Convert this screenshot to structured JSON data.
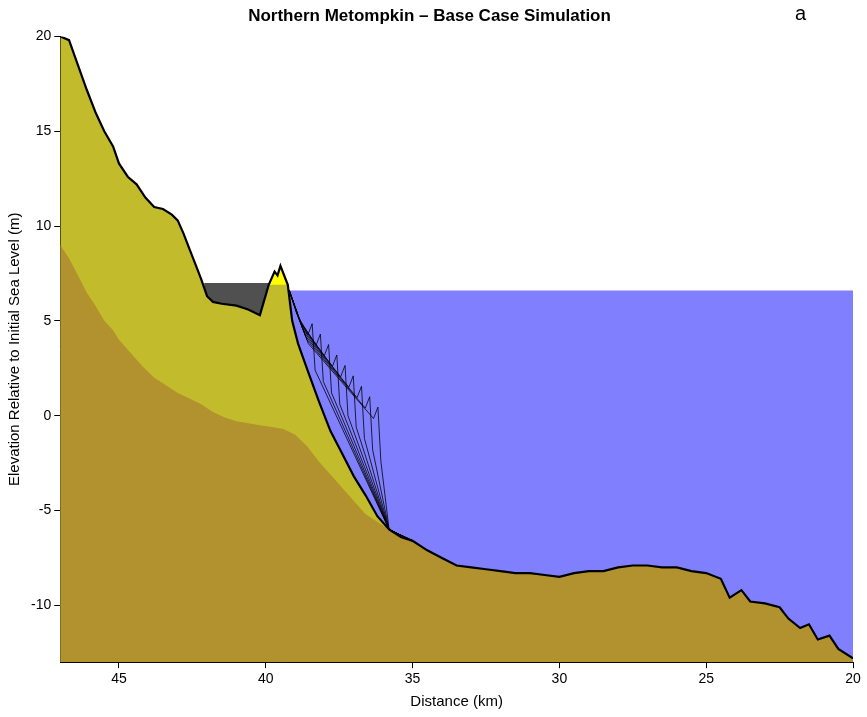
{
  "chart_data": {
    "type": "line",
    "title": "Northern Metompkin – Base Case Simulation",
    "panel_label": "a",
    "x_label": "Distance (km)",
    "y_label": "Elevation Relative to Initial Sea Level (m)",
    "xlim": [
      47,
      20
    ],
    "xticks": [
      45,
      40,
      35,
      30,
      25,
      20
    ],
    "ylim": [
      -13,
      20
    ],
    "yticks": [
      -10,
      -5,
      0,
      5,
      10,
      15,
      20
    ],
    "grid": false,
    "legend": false,
    "series": [
      {
        "type": "area",
        "color": "#8080ff",
        "x": [
          39.22,
          20.0
        ],
        "values": [
          6.6,
          6.6
        ]
      },
      {
        "type": "area",
        "color": "#505050",
        "x": [
          42.1,
          39.85
        ],
        "values": [
          7.0,
          7.0
        ]
      },
      {
        "type": "area",
        "color": "#ffff00",
        "x": [
          39.9,
          39.7,
          39.6,
          39.5,
          39.35,
          39.25
        ],
        "values": [
          6.9,
          7.6,
          7.4,
          7.9,
          7.3,
          6.9
        ]
      },
      {
        "type": "area",
        "color": "#c2bb2c",
        "x": [
          47,
          46.7,
          46.4,
          46.1,
          45.8,
          45.5,
          45.2,
          45.0,
          44.7,
          44.4,
          44.1,
          43.8,
          43.5,
          43.2,
          43.0,
          42.8,
          42.6,
          42.4,
          42.2,
          42.0,
          41.8,
          41.5,
          41.0,
          40.6,
          40.2,
          39.9,
          39.7,
          39.6,
          39.5,
          39.35,
          39.25,
          39.1,
          38.9,
          38.6,
          38.2,
          37.8,
          37.4,
          37.0,
          36.6,
          36.2,
          35.8,
          35.4,
          35.0,
          34.5,
          34.0,
          33.5,
          33.0,
          32.5,
          32.0,
          31.5,
          31.0,
          30.5,
          30.0,
          29.5,
          29.0,
          28.5,
          28.0,
          27.5,
          27.0,
          26.5,
          26.0,
          25.5,
          25.0,
          24.5,
          24.2,
          23.8,
          23.5,
          23.0,
          22.5,
          22.2,
          21.8,
          21.5,
          21.2,
          20.8,
          20.5,
          20.0
        ],
        "values": [
          20,
          19.8,
          18.5,
          17.2,
          16.0,
          15.0,
          14.2,
          13.3,
          12.6,
          12.2,
          11.5,
          11.0,
          10.9,
          10.6,
          10.3,
          9.6,
          8.8,
          8.0,
          7.2,
          6.3,
          6.0,
          5.9,
          5.8,
          5.6,
          5.3,
          6.9,
          6.9,
          6.9,
          6.9,
          6.9,
          6.9,
          5.0,
          3.8,
          2.5,
          0.8,
          -0.8,
          -2.0,
          -3.2,
          -4.2,
          -5.3,
          -6.0,
          -6.4,
          -6.6,
          -7.1,
          -7.5,
          -7.9,
          -8.0,
          -8.1,
          -8.2,
          -8.3,
          -8.3,
          -8.4,
          -8.5,
          -8.3,
          -8.2,
          -8.2,
          -8.0,
          -7.9,
          -7.9,
          -8.0,
          -8.0,
          -8.2,
          -8.3,
          -8.6,
          -9.6,
          -9.2,
          -9.8,
          -9.9,
          -10.1,
          -10.7,
          -11.2,
          -11.0,
          -11.8,
          -11.6,
          -12.3,
          -12.8
        ]
      },
      {
        "type": "area",
        "color": "#b1922f",
        "x": [
          47,
          46.7,
          46.4,
          46.1,
          45.8,
          45.5,
          45.2,
          45.0,
          44.6,
          44.2,
          43.8,
          43.4,
          43.0,
          42.6,
          42.2,
          41.8,
          41.4,
          41.0,
          40.6,
          40.2,
          39.8,
          39.4,
          39.0,
          38.6,
          38.2,
          37.8,
          37.4,
          37.0,
          36.6,
          36.2,
          35.8,
          35.4,
          35.0,
          34.5,
          34.0,
          33.5,
          33.0,
          32.5,
          32.0,
          31.5,
          31.0,
          30.5,
          30.0,
          29.5,
          29.0,
          28.5,
          28.0,
          27.5,
          27.0,
          26.5,
          26.0,
          25.5,
          25.0,
          24.5,
          24.2,
          23.8,
          23.5,
          23.0,
          22.5,
          22.2,
          21.8,
          21.5,
          21.2,
          20.8,
          20.5,
          20.0
        ],
        "values": [
          9.0,
          8.3,
          7.4,
          6.5,
          5.8,
          5.0,
          4.5,
          4.0,
          3.3,
          2.6,
          2.0,
          1.6,
          1.2,
          0.9,
          0.6,
          0.2,
          -0.1,
          -0.3,
          -0.4,
          -0.5,
          -0.6,
          -0.7,
          -1.0,
          -1.6,
          -2.4,
          -3.1,
          -3.8,
          -4.5,
          -5.2,
          -5.6,
          -6.0,
          -6.4,
          -6.6,
          -7.1,
          -7.5,
          -7.9,
          -8.0,
          -8.1,
          -8.2,
          -8.3,
          -8.3,
          -8.4,
          -8.5,
          -8.3,
          -8.2,
          -8.2,
          -8.0,
          -7.9,
          -7.9,
          -8.0,
          -8.0,
          -8.2,
          -8.3,
          -8.6,
          -9.6,
          -9.2,
          -9.8,
          -9.9,
          -10.1,
          -10.7,
          -11.2,
          -11.0,
          -11.8,
          -11.6,
          -12.3,
          -12.8
        ]
      },
      {
        "type": "line",
        "color": "#000000",
        "line_style": "thin",
        "x": [
          39.2,
          38.95,
          38.57,
          38.42,
          38.32,
          35.8,
          35.0
        ],
        "values": [
          6.6,
          5.4,
          4.25,
          4.85,
          2.4,
          -6.0,
          -6.6
        ]
      },
      {
        "type": "line",
        "color": "#000000",
        "line_style": "thin",
        "x": [
          39.2,
          38.9,
          38.29,
          38.14,
          38.04,
          35.8,
          35.0
        ],
        "values": [
          6.6,
          5.2,
          3.7,
          4.3,
          1.8,
          -6.0,
          -6.6
        ]
      },
      {
        "type": "line",
        "color": "#000000",
        "line_style": "thin",
        "x": [
          39.2,
          38.85,
          38.01,
          37.86,
          37.76,
          35.8,
          35.0
        ],
        "values": [
          6.6,
          5.0,
          3.15,
          3.75,
          1.2,
          -6.0,
          -6.6
        ]
      },
      {
        "type": "line",
        "color": "#000000",
        "line_style": "thin",
        "x": [
          39.2,
          38.8,
          37.73,
          37.58,
          37.48,
          35.8,
          35.0
        ],
        "values": [
          6.6,
          4.8,
          2.6,
          3.2,
          0.6,
          -6.0,
          -6.6
        ]
      },
      {
        "type": "line",
        "color": "#000000",
        "line_style": "thin",
        "x": [
          39.2,
          38.75,
          37.45,
          37.3,
          37.2,
          35.8,
          35.0
        ],
        "values": [
          6.6,
          4.6,
          2.05,
          2.65,
          0.0,
          -6.0,
          -6.6
        ]
      },
      {
        "type": "line",
        "color": "#000000",
        "line_style": "thin",
        "x": [
          39.2,
          38.7,
          37.17,
          37.02,
          36.92,
          35.8,
          35.0
        ],
        "values": [
          6.6,
          4.4,
          1.5,
          2.1,
          -0.6,
          -6.0,
          -6.6
        ]
      },
      {
        "type": "line",
        "color": "#000000",
        "line_style": "thin",
        "x": [
          39.2,
          38.65,
          36.89,
          36.74,
          36.64,
          35.8,
          35.0
        ],
        "values": [
          6.6,
          4.2,
          0.95,
          1.55,
          -1.2,
          -6.0,
          -6.6
        ]
      },
      {
        "type": "line",
        "color": "#000000",
        "line_style": "thin",
        "x": [
          39.2,
          38.6,
          36.61,
          36.46,
          36.36,
          35.8,
          35.0
        ],
        "values": [
          6.6,
          4.0,
          0.4,
          1.0,
          -1.8,
          -6.0,
          -6.6
        ]
      },
      {
        "type": "line",
        "color": "#000000",
        "line_style": "thin",
        "x": [
          39.2,
          38.55,
          36.33,
          36.18,
          36.08,
          35.8,
          35.0
        ],
        "values": [
          6.6,
          3.8,
          -0.15,
          0.45,
          -2.4,
          -6.0,
          -6.6
        ]
      },
      {
        "type": "line",
        "color": "#000000",
        "line_style": "thick",
        "x": [
          47,
          46.7,
          46.4,
          46.1,
          45.8,
          45.5,
          45.2,
          45.0,
          44.7,
          44.4,
          44.1,
          43.8,
          43.5,
          43.2,
          43.0,
          42.8,
          42.6,
          42.4,
          42.2,
          42.0,
          41.8,
          41.5,
          41.0,
          40.6,
          40.2,
          39.9,
          39.7,
          39.6,
          39.5,
          39.35,
          39.25,
          39.1,
          38.9,
          38.6,
          38.2,
          37.8,
          37.4,
          37.0,
          36.6,
          36.2,
          35.8,
          35.4,
          35.0,
          34.5,
          34.0,
          33.5,
          33.0,
          32.5,
          32.0,
          31.5,
          31.0,
          30.5,
          30.0,
          29.5,
          29.0,
          28.5,
          28.0,
          27.5,
          27.0,
          26.5,
          26.0,
          25.5,
          25.0,
          24.5,
          24.2,
          23.8,
          23.5,
          23.0,
          22.5,
          22.2,
          21.8,
          21.5,
          21.2,
          20.8,
          20.5,
          20.0
        ],
        "values": [
          20,
          19.8,
          18.5,
          17.2,
          16.0,
          15.0,
          14.2,
          13.3,
          12.6,
          12.2,
          11.5,
          11.0,
          10.9,
          10.6,
          10.3,
          9.6,
          8.8,
          8.0,
          7.2,
          6.3,
          6.0,
          5.9,
          5.8,
          5.6,
          5.3,
          6.9,
          7.6,
          7.4,
          7.9,
          7.3,
          6.9,
          5.0,
          3.8,
          2.5,
          0.8,
          -0.8,
          -2.0,
          -3.2,
          -4.2,
          -5.3,
          -6.0,
          -6.4,
          -6.6,
          -7.1,
          -7.5,
          -7.9,
          -8.0,
          -8.1,
          -8.2,
          -8.3,
          -8.3,
          -8.4,
          -8.5,
          -8.3,
          -8.2,
          -8.2,
          -8.0,
          -7.9,
          -7.9,
          -8.0,
          -8.0,
          -8.2,
          -8.3,
          -8.6,
          -9.6,
          -9.2,
          -9.8,
          -9.9,
          -10.1,
          -10.7,
          -11.2,
          -11.0,
          -11.8,
          -11.6,
          -12.3,
          -12.8
        ]
      }
    ]
  }
}
